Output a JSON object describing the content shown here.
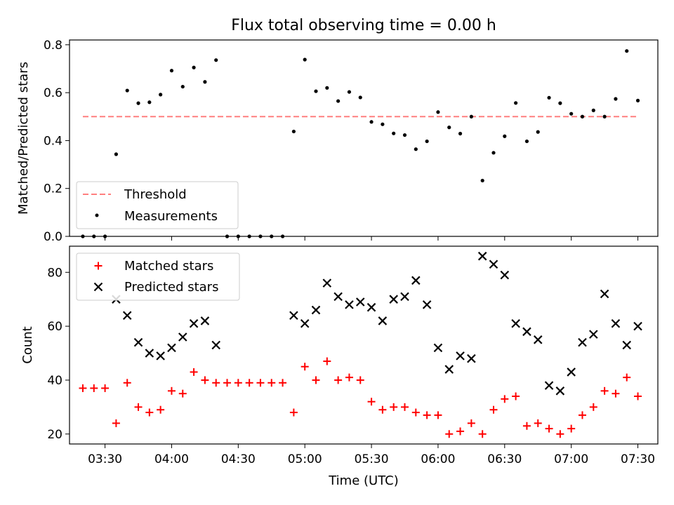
{
  "figure": {
    "title": "Flux total observing time = 0.00 h",
    "xlabel": "Time (UTC)"
  },
  "colors": {
    "threshold": "#ff7f7f",
    "measurements": "#000000",
    "matched": "#ff0000",
    "predicted": "#000000"
  },
  "chart_data": [
    {
      "type": "scatter",
      "title": "Flux total observing time = 0.00 h",
      "ylabel": "Matched/Predicted stars",
      "xlabel": "",
      "xlim": [
        "03:14",
        "07:39"
      ],
      "ylim": [
        0,
        0.82
      ],
      "yticks": [
        0.0,
        0.2,
        0.4,
        0.6,
        0.8
      ],
      "legend": "lower-left",
      "grid": false,
      "series": [
        {
          "name": "Threshold",
          "style": "dashed-line",
          "x": [
            "03:20",
            "07:30"
          ],
          "y": [
            0.5,
            0.5
          ]
        },
        {
          "name": "Measurements",
          "style": "dot",
          "x": [
            "03:20",
            "03:25",
            "03:30",
            "03:35",
            "03:40",
            "03:45",
            "03:50",
            "03:55",
            "04:00",
            "04:05",
            "04:10",
            "04:15",
            "04:20",
            "04:25",
            "04:30",
            "04:35",
            "04:40",
            "04:45",
            "04:50",
            "04:55",
            "05:00",
            "05:05",
            "05:10",
            "05:15",
            "05:20",
            "05:25",
            "05:30",
            "05:35",
            "05:40",
            "05:45",
            "05:50",
            "05:55",
            "06:00",
            "06:05",
            "06:10",
            "06:15",
            "06:20",
            "06:25",
            "06:30",
            "06:35",
            "06:40",
            "06:45",
            "06:50",
            "06:55",
            "07:00",
            "07:05",
            "07:10",
            "07:15",
            "07:20",
            "07:25",
            "07:30"
          ],
          "y": [
            0.0,
            0.0,
            0.0,
            0.343,
            0.609,
            0.556,
            0.56,
            0.592,
            0.692,
            0.625,
            0.705,
            0.645,
            0.736,
            0.0,
            0.0,
            0.0,
            0.0,
            0.0,
            0.0,
            0.438,
            0.738,
            0.606,
            0.62,
            0.565,
            0.603,
            0.58,
            0.478,
            0.468,
            0.43,
            0.423,
            0.364,
            0.397,
            0.519,
            0.455,
            0.429,
            0.5,
            0.233,
            0.349,
            0.418,
            0.557,
            0.397,
            0.436,
            0.579,
            0.556,
            0.512,
            0.5,
            0.526,
            0.5,
            0.574,
            0.774,
            0.567
          ]
        }
      ]
    },
    {
      "type": "scatter",
      "title": "",
      "ylabel": "Count",
      "xlabel": "Time (UTC)",
      "xlim": [
        "03:14",
        "07:39"
      ],
      "ylim": [
        16.3,
        89.7
      ],
      "yticks": [
        20,
        40,
        60,
        80
      ],
      "xticks": [
        "03:30",
        "04:00",
        "04:30",
        "05:00",
        "05:30",
        "06:00",
        "06:30",
        "07:00",
        "07:30"
      ],
      "legend": "upper-left",
      "grid": false,
      "series": [
        {
          "name": "Matched stars",
          "style": "plus",
          "x": [
            "03:20",
            "03:25",
            "03:30",
            "03:35",
            "03:40",
            "03:45",
            "03:50",
            "03:55",
            "04:00",
            "04:05",
            "04:10",
            "04:15",
            "04:20",
            "04:25",
            "04:30",
            "04:35",
            "04:40",
            "04:45",
            "04:50",
            "04:55",
            "05:00",
            "05:05",
            "05:10",
            "05:15",
            "05:20",
            "05:25",
            "05:30",
            "05:35",
            "05:40",
            "05:45",
            "05:50",
            "05:55",
            "06:00",
            "06:05",
            "06:10",
            "06:15",
            "06:20",
            "06:25",
            "06:30",
            "06:35",
            "06:40",
            "06:45",
            "06:50",
            "06:55",
            "07:00",
            "07:05",
            "07:10",
            "07:15",
            "07:20",
            "07:25",
            "07:30"
          ],
          "y": [
            37,
            37,
            37,
            24,
            39,
            30,
            28,
            29,
            36,
            35,
            43,
            40,
            39,
            39,
            39,
            39,
            39,
            39,
            39,
            28,
            45,
            40,
            47,
            40,
            41,
            40,
            32,
            29,
            30,
            30,
            28,
            27,
            27,
            20,
            21,
            24,
            20,
            29,
            33,
            34,
            23,
            24,
            22,
            20,
            22,
            27,
            30,
            36,
            35,
            41,
            34
          ]
        },
        {
          "name": "Predicted stars",
          "style": "x",
          "x": [
            "03:35",
            "03:40",
            "03:45",
            "03:50",
            "03:55",
            "04:00",
            "04:05",
            "04:10",
            "04:15",
            "04:20",
            "04:55",
            "05:00",
            "05:05",
            "05:10",
            "05:15",
            "05:20",
            "05:25",
            "05:30",
            "05:35",
            "05:40",
            "05:45",
            "05:50",
            "05:55",
            "06:00",
            "06:05",
            "06:10",
            "06:15",
            "06:20",
            "06:25",
            "06:30",
            "06:35",
            "06:40",
            "06:45",
            "06:50",
            "06:55",
            "07:00",
            "07:05",
            "07:10",
            "07:15",
            "07:20",
            "07:25",
            "07:30"
          ],
          "y": [
            70,
            64,
            54,
            50,
            49,
            52,
            56,
            61,
            62,
            53,
            64,
            61,
            66,
            76,
            71,
            68,
            69,
            67,
            62,
            70,
            71,
            77,
            68,
            52,
            44,
            49,
            48,
            86,
            83,
            79,
            61,
            58,
            55,
            38,
            36,
            43,
            54,
            57,
            72,
            61,
            53,
            60
          ]
        }
      ]
    }
  ]
}
